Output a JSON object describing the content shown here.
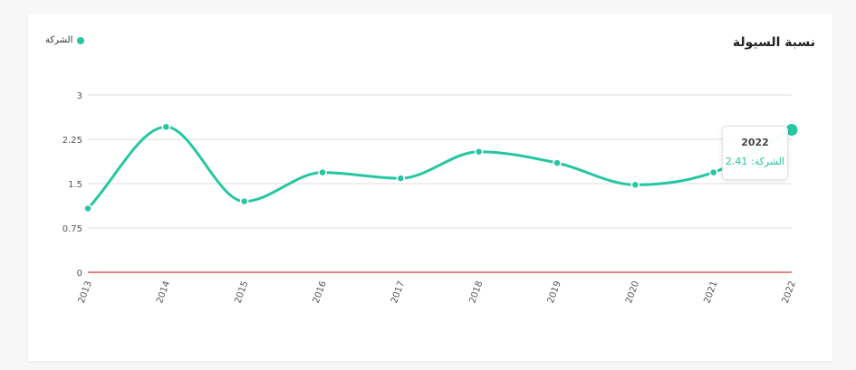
{
  "header": {
    "title": "نسبة السيولة"
  },
  "legend": {
    "label": "الشركة"
  },
  "colors": {
    "series": "#26c6a2",
    "zero_line": "#e05a5a",
    "grid": "#dcdcdc"
  },
  "tooltip": {
    "year": "2022",
    "series_label": "الشركة:",
    "value": "2.41"
  },
  "chart_data": {
    "type": "line",
    "title": "نسبة السيولة",
    "xlabel": "",
    "ylabel": "",
    "x": [
      "2013",
      "2014",
      "2015",
      "2016",
      "2017",
      "2018",
      "2019",
      "2020",
      "2021",
      "2022"
    ],
    "series": [
      {
        "name": "الشركة",
        "values": [
          1.08,
          2.46,
          1.2,
          1.69,
          1.59,
          2.04,
          1.85,
          1.48,
          1.69,
          2.41
        ]
      }
    ],
    "yticks": [
      "0",
      "0.75",
      "1.5",
      "2.25",
      "3"
    ],
    "ylim": [
      0,
      3
    ],
    "grid": true,
    "smooth": true,
    "legend_position": "top-left",
    "highlighted_point": "2022"
  }
}
